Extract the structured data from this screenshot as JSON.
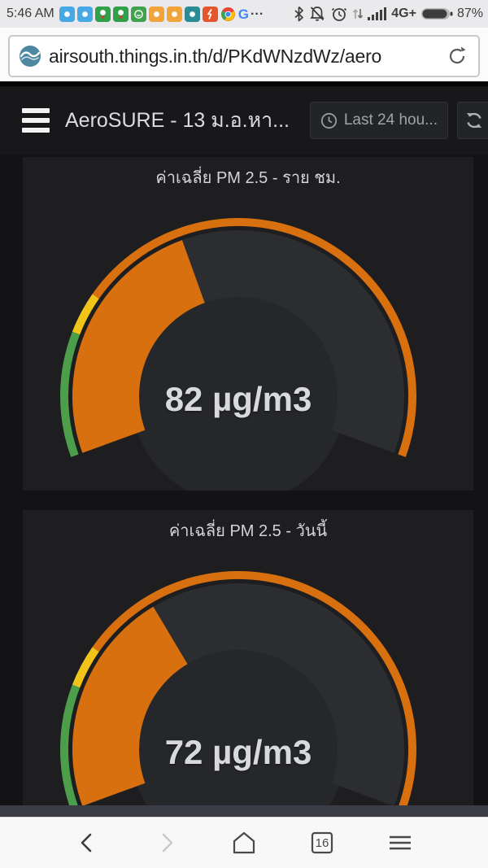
{
  "status_bar": {
    "time": "5:46 AM",
    "overflow": "...",
    "network_type": "4G+",
    "battery_percent": "87%",
    "battery_level": 0.87,
    "app_icons": [
      {
        "name": "app-blue-1",
        "color": "#47a8e6",
        "glyph": "dot"
      },
      {
        "name": "app-blue-2",
        "color": "#47a8e6",
        "glyph": "dot"
      },
      {
        "name": "app-green-1",
        "color": "#31a04a",
        "glyph": "char"
      },
      {
        "name": "app-green-2",
        "color": "#31a04a",
        "glyph": "char"
      },
      {
        "name": "app-green-3",
        "color": "#3fa34d",
        "glyph": "face"
      },
      {
        "name": "app-amber-1",
        "color": "#f0a43a",
        "glyph": "dot"
      },
      {
        "name": "app-amber-2",
        "color": "#f0a43a",
        "glyph": "dot"
      },
      {
        "name": "app-teal",
        "color": "#2a8d96",
        "glyph": "dot"
      },
      {
        "name": "app-red",
        "color": "#e4562c",
        "glyph": "bolt"
      },
      {
        "name": "app-chrome",
        "color": "#ffffff",
        "glyph": "chrome"
      },
      {
        "name": "app-google",
        "color": "#4285F4",
        "glyph": "G"
      }
    ]
  },
  "browser": {
    "url": "airsouth.things.in.th/d/PKdWNzdWz/aero",
    "tab_count": "16"
  },
  "dashboard": {
    "title": "AeroSURE - 13 ม.อ.หา...",
    "time_range_label": "Last 24 hou..."
  },
  "chart_data": [
    {
      "type": "gauge",
      "title": "ค่าเฉลี่ย PM 2.5 - ราย ชม.",
      "value": 82,
      "unit": "µg/m3",
      "display": "82 µg/m3",
      "min": 0,
      "max": 200,
      "start_angle": -110,
      "end_angle": 110,
      "thresholds": [
        {
          "color": "#4d9e4b",
          "to": 37.5
        },
        {
          "color": "#f0c419",
          "to": 50
        },
        {
          "color": "#d9700f",
          "to": 200
        }
      ],
      "value_color": "#d9700f"
    },
    {
      "type": "gauge",
      "title": "ค่าเฉลี่ย PM 2.5 - วันนี้",
      "value": 72,
      "unit": "µg/m3",
      "display": "72 µg/m3",
      "min": 0,
      "max": 200,
      "start_angle": -110,
      "end_angle": 110,
      "thresholds": [
        {
          "color": "#4d9e4b",
          "to": 37.5
        },
        {
          "color": "#f0c419",
          "to": 50
        },
        {
          "color": "#d9700f",
          "to": 200
        }
      ],
      "value_color": "#d9700f"
    }
  ],
  "colors": {
    "accent_orange": "#d9700f",
    "good_green": "#4d9e4b",
    "warn_yellow": "#f0c419",
    "panel_bg": "#1e1e20",
    "page_bg": "#131315",
    "gauge_track": "#2b2d30",
    "gauge_face": "#26272a",
    "value_text": "#d8d9da"
  }
}
